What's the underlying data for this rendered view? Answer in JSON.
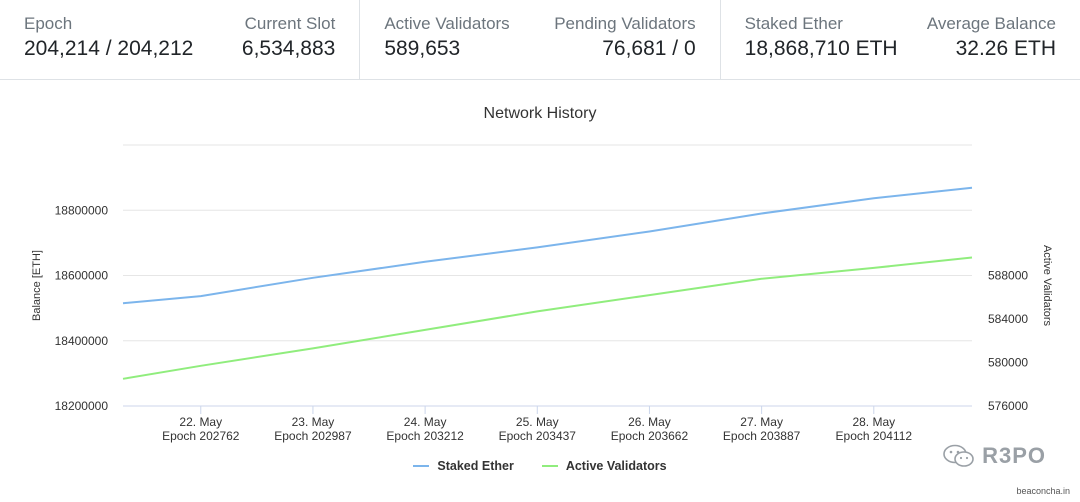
{
  "stats": {
    "epoch": {
      "label": "Epoch",
      "value": "204,214 / 204,212"
    },
    "current_slot": {
      "label": "Current Slot",
      "value": "6,534,883"
    },
    "active_validators": {
      "label": "Active Validators",
      "value": "589,653"
    },
    "pending_validators": {
      "label": "Pending Validators",
      "value": "76,681 / 0"
    },
    "staked_ether": {
      "label": "Staked Ether",
      "value": "18,868,710 ETH"
    },
    "average_balance": {
      "label": "Average Balance",
      "value": "32.26 ETH"
    }
  },
  "chart_data": {
    "type": "line",
    "title": "Network History",
    "ylabel": "Balance [ETH]",
    "y2label": "Active Validators",
    "ylim": [
      18200000,
      19000000
    ],
    "y2lim": [
      576000,
      600000
    ],
    "y_ticks": [
      "18200000",
      "18400000",
      "18600000",
      "18800000"
    ],
    "y2_ticks": [
      "576000",
      "580000",
      "584000",
      "588000"
    ],
    "x_ticks": [
      {
        "day": "22. May",
        "epoch": "Epoch 202762"
      },
      {
        "day": "23. May",
        "epoch": "Epoch 202987"
      },
      {
        "day": "24. May",
        "epoch": "Epoch 203212"
      },
      {
        "day": "25. May",
        "epoch": "Epoch 203437"
      },
      {
        "day": "26. May",
        "epoch": "Epoch 203662"
      },
      {
        "day": "27. May",
        "epoch": "Epoch 203887"
      },
      {
        "day": "28. May",
        "epoch": "Epoch 204112"
      }
    ],
    "x_range": [
      202606,
      204309
    ],
    "grid": true,
    "legend_position": "bottom-center",
    "series": [
      {
        "name": "Staked Ether",
        "axis": "left",
        "color": "#7cb5ec",
        "x": [
          202606,
          202762,
          202987,
          203212,
          203437,
          203662,
          203887,
          204112,
          204309
        ],
        "values": [
          18515000,
          18537000,
          18593000,
          18642000,
          18686000,
          18735000,
          18790000,
          18837000,
          18868710
        ]
      },
      {
        "name": "Active Validators",
        "axis": "right",
        "color": "#90ed7d",
        "x": [
          202606,
          202762,
          202987,
          203212,
          203437,
          203662,
          203887,
          204112,
          204309
        ],
        "values": [
          578500,
          579700,
          581300,
          583000,
          584700,
          586200,
          587700,
          588700,
          589653
        ]
      }
    ]
  },
  "watermark": {
    "text": "R3PO",
    "icon": "wechat-icon"
  },
  "source": "beaconcha.in"
}
